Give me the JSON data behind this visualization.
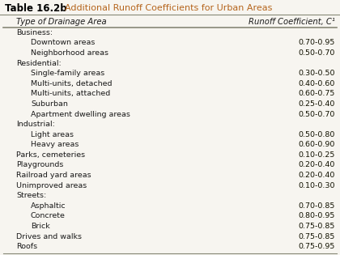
{
  "title": "Table 16.2b",
  "title_color": "#000000",
  "subtitle": "  Additional Runoff Coefficients for Urban Areas",
  "subtitle_color": "#b5651d",
  "col1_header": "Type of Drainage Area",
  "col2_header": "Runoff Coefficient, C¹",
  "rows": [
    {
      "label": "Business:",
      "value": "",
      "indent": 0
    },
    {
      "label": "Downtown areas",
      "value": "0.70-0.95",
      "indent": 1
    },
    {
      "label": "Neighborhood areas",
      "value": "0.50-0.70",
      "indent": 1
    },
    {
      "label": "Residential:",
      "value": "",
      "indent": 0
    },
    {
      "label": "Single-family areas",
      "value": "0.30-0.50",
      "indent": 1
    },
    {
      "label": "Multi-units, detached",
      "value": "0.40-0.60",
      "indent": 1
    },
    {
      "label": "Multi-units, attached",
      "value": "0.60-0.75",
      "indent": 1
    },
    {
      "label": "Suburban",
      "value": "0.25-0.40",
      "indent": 1
    },
    {
      "label": "Apartment dwelling areas",
      "value": "0.50-0.70",
      "indent": 1
    },
    {
      "label": "Industrial:",
      "value": "",
      "indent": 0
    },
    {
      "label": "Light areas",
      "value": "0.50-0.80",
      "indent": 1
    },
    {
      "label": "Heavy areas",
      "value": "0.60-0.90",
      "indent": 1
    },
    {
      "label": "Parks, cemeteries",
      "value": "0.10-0.25",
      "indent": 0
    },
    {
      "label": "Playgrounds",
      "value": "0.20-0.40",
      "indent": 0
    },
    {
      "label": "Railroad yard areas",
      "value": "0.20-0.40",
      "indent": 0
    },
    {
      "label": "Unimproved areas",
      "value": "0.10-0.30",
      "indent": 0
    },
    {
      "label": "Streets:",
      "value": "",
      "indent": 0
    },
    {
      "label": "Asphaltic",
      "value": "0.70-0.85",
      "indent": 1
    },
    {
      "label": "Concrete",
      "value": "0.80-0.95",
      "indent": 1
    },
    {
      "label": "Brick",
      "value": "0.75-0.85",
      "indent": 1
    },
    {
      "label": "Drives and walks",
      "value": "0.75-0.85",
      "indent": 0
    },
    {
      "label": "Roofs",
      "value": "0.75-0.95",
      "indent": 0
    }
  ],
  "bg_color": "#f7f5f0",
  "text_color": "#1a1a1a",
  "value_color": "#111100",
  "line_color": "#888877",
  "font_size": 6.8,
  "header_font_size": 7.2,
  "title_font_size": 8.5,
  "subtitle_font_size": 8.0
}
